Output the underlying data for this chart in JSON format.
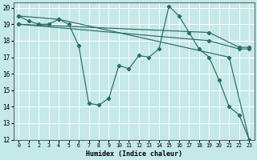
{
  "xlabel": "Humidex (Indice chaleur)",
  "xlim": [
    -0.5,
    23.5
  ],
  "ylim": [
    12,
    20.3
  ],
  "xticks": [
    0,
    1,
    2,
    3,
    4,
    5,
    6,
    7,
    8,
    9,
    10,
    11,
    12,
    13,
    14,
    15,
    16,
    17,
    18,
    19,
    20,
    21,
    22,
    23
  ],
  "yticks": [
    12,
    13,
    14,
    15,
    16,
    17,
    18,
    19,
    20
  ],
  "background_color": "#c5e8e8",
  "grid_color": "#ffffff",
  "line_color": "#2a6e62",
  "line1_x": [
    0,
    1,
    2,
    3,
    4,
    5,
    6,
    7,
    8,
    9,
    10,
    11,
    12,
    13,
    14,
    15,
    16,
    17,
    18,
    19,
    20,
    21,
    22,
    23
  ],
  "line1_y": [
    19.5,
    19.2,
    19.0,
    19.0,
    19.3,
    19.0,
    17.7,
    14.2,
    14.1,
    14.5,
    16.5,
    16.3,
    17.1,
    17.0,
    17.5,
    20.1,
    19.5,
    18.5,
    17.5,
    17.0,
    15.6,
    14.0,
    13.5,
    12.0
  ],
  "line2_x": [
    0,
    4,
    21,
    23
  ],
  "line2_y": [
    19.5,
    19.3,
    17.0,
    12.0
  ],
  "line3_x": [
    0,
    19,
    22,
    23
  ],
  "line3_y": [
    19.0,
    18.0,
    17.5,
    17.5
  ],
  "line4_x": [
    0,
    19,
    22,
    23
  ],
  "line4_y": [
    19.0,
    18.5,
    17.6,
    17.6
  ]
}
